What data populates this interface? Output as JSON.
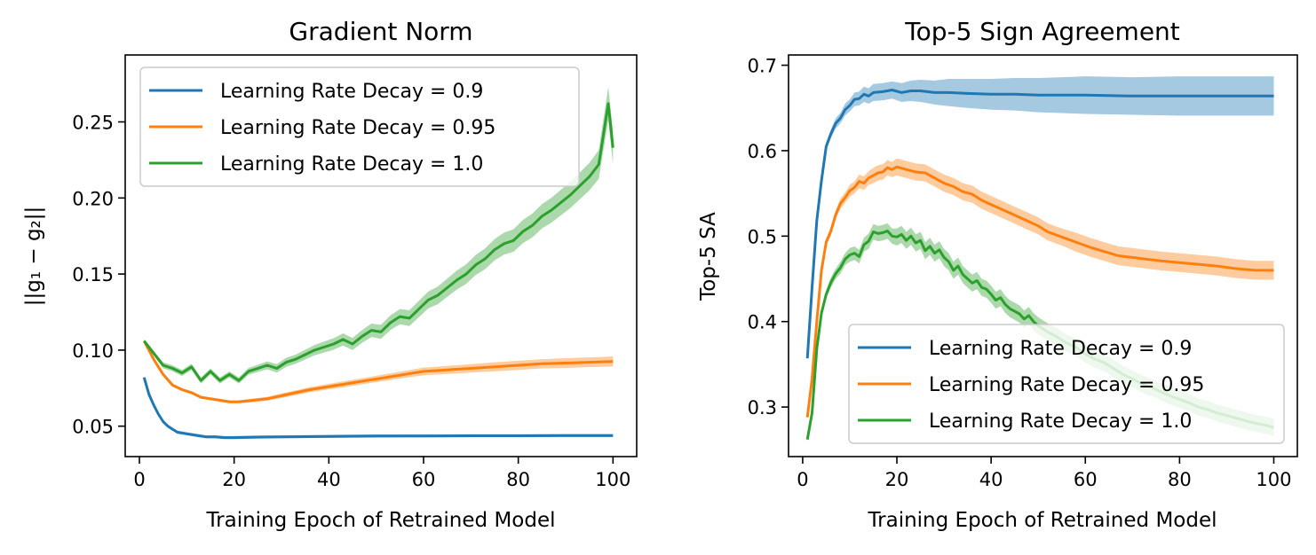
{
  "chart_data": [
    {
      "type": "line",
      "title": "Gradient Norm",
      "xlabel": "Training Epoch of Retrained Model",
      "ylabel": "||g₁ − g₂||",
      "xlim": [
        -3,
        105
      ],
      "ylim": [
        0.03,
        0.294
      ],
      "xticks": [
        "0",
        "20",
        "40",
        "60",
        "80",
        "100"
      ],
      "xtick_values": [
        0,
        20,
        40,
        60,
        80,
        100
      ],
      "yticks": [
        "0.05",
        "0.10",
        "0.15",
        "0.20",
        "0.25"
      ],
      "ytick_values": [
        0.05,
        0.1,
        0.15,
        0.2,
        0.25
      ],
      "legend_position": "top-left",
      "grid": false,
      "series": [
        {
          "name": "Learning Rate Decay = 0.9",
          "color": "#1f77b4",
          "x": [
            1,
            2,
            3,
            4,
            5,
            6,
            7,
            8,
            10,
            12,
            14,
            16,
            18,
            20,
            25,
            30,
            40,
            50,
            60,
            70,
            80,
            90,
            100
          ],
          "y": [
            0.082,
            0.071,
            0.064,
            0.058,
            0.053,
            0.05,
            0.048,
            0.046,
            0.045,
            0.044,
            0.043,
            0.043,
            0.0425,
            0.0425,
            0.0428,
            0.043,
            0.0433,
            0.0435,
            0.0436,
            0.0437,
            0.0437,
            0.0438,
            0.0438
          ],
          "band": [
            0.001,
            0.001,
            0.001,
            0.001,
            0.001,
            0.001,
            0.001,
            0.001,
            0.001,
            0.001,
            0.001,
            0.001,
            0.001,
            0.001,
            0.001,
            0.001,
            0.001,
            0.001,
            0.001,
            0.001,
            0.001,
            0.001,
            0.001
          ]
        },
        {
          "name": "Learning Rate Decay = 0.95",
          "color": "#ff7f0e",
          "x": [
            1,
            3,
            5,
            7,
            9,
            11,
            13,
            15,
            17,
            19,
            21,
            24,
            27,
            30,
            33,
            36,
            40,
            44,
            48,
            52,
            56,
            60,
            65,
            70,
            75,
            80,
            85,
            90,
            95,
            100
          ],
          "y": [
            0.106,
            0.094,
            0.084,
            0.077,
            0.074,
            0.072,
            0.069,
            0.068,
            0.067,
            0.066,
            0.066,
            0.067,
            0.068,
            0.07,
            0.072,
            0.074,
            0.076,
            0.078,
            0.08,
            0.082,
            0.084,
            0.086,
            0.087,
            0.088,
            0.089,
            0.09,
            0.091,
            0.0915,
            0.092,
            0.0925
          ],
          "band": [
            0.001,
            0.001,
            0.001,
            0.001,
            0.001,
            0.001,
            0.001,
            0.001,
            0.001,
            0.001,
            0.001,
            0.0012,
            0.0013,
            0.0015,
            0.0016,
            0.0017,
            0.0018,
            0.002,
            0.002,
            0.0022,
            0.0023,
            0.0025,
            0.0026,
            0.0028,
            0.003,
            0.003,
            0.003,
            0.0032,
            0.0032,
            0.0033
          ]
        },
        {
          "name": "Learning Rate Decay = 1.0",
          "color": "#2ca02c",
          "x": [
            1,
            3,
            5,
            7,
            9,
            11,
            13,
            15,
            17,
            19,
            21,
            23,
            25,
            27,
            29,
            31,
            33,
            35,
            37,
            39,
            41,
            43,
            45,
            47,
            49,
            51,
            53,
            55,
            57,
            59,
            61,
            63,
            65,
            67,
            69,
            71,
            73,
            75,
            77,
            79,
            81,
            83,
            85,
            87,
            89,
            91,
            93,
            95,
            97,
            99,
            100
          ],
          "y": [
            0.106,
            0.098,
            0.09,
            0.088,
            0.085,
            0.089,
            0.08,
            0.086,
            0.08,
            0.084,
            0.08,
            0.086,
            0.088,
            0.09,
            0.088,
            0.092,
            0.094,
            0.097,
            0.1,
            0.102,
            0.104,
            0.107,
            0.104,
            0.109,
            0.113,
            0.112,
            0.118,
            0.122,
            0.121,
            0.127,
            0.133,
            0.136,
            0.141,
            0.146,
            0.15,
            0.156,
            0.16,
            0.166,
            0.17,
            0.172,
            0.178,
            0.182,
            0.188,
            0.192,
            0.197,
            0.202,
            0.208,
            0.214,
            0.222,
            0.262,
            0.233
          ],
          "band": [
            0.001,
            0.0015,
            0.002,
            0.002,
            0.002,
            0.002,
            0.002,
            0.002,
            0.002,
            0.002,
            0.002,
            0.0022,
            0.0024,
            0.0026,
            0.0028,
            0.003,
            0.003,
            0.0032,
            0.0034,
            0.0036,
            0.0038,
            0.004,
            0.004,
            0.0042,
            0.0044,
            0.0046,
            0.0048,
            0.005,
            0.0052,
            0.0054,
            0.0056,
            0.0058,
            0.006,
            0.0062,
            0.0064,
            0.0066,
            0.0068,
            0.007,
            0.0072,
            0.0074,
            0.0076,
            0.0078,
            0.008,
            0.0082,
            0.0084,
            0.0086,
            0.0088,
            0.009,
            0.0095,
            0.011,
            0.011
          ]
        }
      ]
    },
    {
      "type": "line",
      "title": "Top-5 Sign Agreement",
      "xlabel": "Training Epoch of Retrained Model",
      "ylabel": "Top-5 SA",
      "xlim": [
        -3,
        105
      ],
      "ylim": [
        0.242,
        0.712
      ],
      "xticks": [
        "0",
        "20",
        "40",
        "60",
        "80",
        "100"
      ],
      "xtick_values": [
        0,
        20,
        40,
        60,
        80,
        100
      ],
      "yticks": [
        "0.3",
        "0.4",
        "0.5",
        "0.6",
        "0.7"
      ],
      "ytick_values": [
        0.3,
        0.4,
        0.5,
        0.6,
        0.7
      ],
      "legend_position": "bottom-right",
      "grid": false,
      "series": [
        {
          "name": "Learning Rate Decay = 0.9",
          "color": "#1f77b4",
          "x": [
            1,
            2,
            3,
            4,
            5,
            6,
            7,
            8,
            9,
            10,
            11,
            12,
            13,
            14,
            15,
            17,
            19,
            21,
            23,
            25,
            28,
            31,
            35,
            40,
            45,
            50,
            55,
            60,
            70,
            80,
            90,
            100
          ],
          "y": [
            0.357,
            0.44,
            0.518,
            0.565,
            0.605,
            0.62,
            0.632,
            0.638,
            0.648,
            0.653,
            0.66,
            0.661,
            0.666,
            0.664,
            0.668,
            0.669,
            0.671,
            0.668,
            0.67,
            0.67,
            0.668,
            0.668,
            0.667,
            0.666,
            0.666,
            0.665,
            0.665,
            0.665,
            0.664,
            0.664,
            0.664,
            0.664
          ],
          "band": [
            0.003,
            0.004,
            0.004,
            0.004,
            0.005,
            0.005,
            0.006,
            0.006,
            0.007,
            0.007,
            0.008,
            0.008,
            0.009,
            0.009,
            0.01,
            0.01,
            0.01,
            0.011,
            0.012,
            0.013,
            0.014,
            0.016,
            0.017,
            0.018,
            0.019,
            0.02,
            0.021,
            0.022,
            0.022,
            0.023,
            0.023,
            0.023
          ]
        },
        {
          "name": "Learning Rate Decay = 0.95",
          "color": "#ff7f0e",
          "x": [
            1,
            2,
            3,
            4,
            5,
            6,
            7,
            8,
            9,
            10,
            11,
            12,
            13,
            14,
            15,
            16,
            17,
            18,
            19,
            20,
            22,
            24,
            26,
            28,
            30,
            32,
            34,
            36,
            38,
            40,
            42,
            44,
            46,
            48,
            50,
            52,
            55,
            58,
            61,
            64,
            67,
            70,
            73,
            76,
            80,
            84,
            88,
            92,
            96,
            100
          ],
          "y": [
            0.288,
            0.333,
            0.4,
            0.46,
            0.493,
            0.506,
            0.525,
            0.538,
            0.545,
            0.553,
            0.557,
            0.564,
            0.562,
            0.568,
            0.571,
            0.574,
            0.575,
            0.58,
            0.578,
            0.581,
            0.578,
            0.575,
            0.574,
            0.568,
            0.562,
            0.558,
            0.552,
            0.549,
            0.542,
            0.537,
            0.532,
            0.527,
            0.522,
            0.517,
            0.512,
            0.505,
            0.499,
            0.493,
            0.487,
            0.482,
            0.477,
            0.475,
            0.473,
            0.471,
            0.469,
            0.467,
            0.465,
            0.462,
            0.46,
            0.46
          ],
          "band": [
            0.002,
            0.003,
            0.003,
            0.004,
            0.004,
            0.005,
            0.005,
            0.006,
            0.006,
            0.007,
            0.007,
            0.008,
            0.008,
            0.008,
            0.009,
            0.009,
            0.009,
            0.009,
            0.009,
            0.01,
            0.01,
            0.01,
            0.01,
            0.01,
            0.01,
            0.01,
            0.01,
            0.01,
            0.01,
            0.01,
            0.01,
            0.01,
            0.01,
            0.01,
            0.01,
            0.01,
            0.01,
            0.011,
            0.011,
            0.011,
            0.011,
            0.011,
            0.011,
            0.011,
            0.011,
            0.011,
            0.011,
            0.011,
            0.011,
            0.011
          ]
        },
        {
          "name": "Learning Rate Decay = 1.0",
          "color": "#2ca02c",
          "x": [
            1,
            2,
            3,
            4,
            5,
            6,
            7,
            8,
            9,
            10,
            11,
            12,
            13,
            14,
            15,
            16,
            17,
            18,
            19,
            20,
            21,
            22,
            23,
            24,
            25,
            26,
            27,
            28,
            29,
            30,
            31,
            32,
            33,
            34,
            35,
            36,
            37,
            38,
            39,
            40,
            41,
            42,
            43,
            44,
            45,
            46,
            47,
            48,
            49,
            50,
            52,
            54,
            56,
            58,
            60,
            62,
            64,
            66,
            68,
            70,
            72,
            74,
            76,
            78,
            80,
            82,
            84,
            86,
            88,
            90,
            92,
            94,
            96,
            98,
            100
          ],
          "y": [
            0.262,
            0.293,
            0.368,
            0.41,
            0.432,
            0.446,
            0.456,
            0.463,
            0.473,
            0.478,
            0.48,
            0.476,
            0.49,
            0.494,
            0.505,
            0.503,
            0.504,
            0.506,
            0.5,
            0.499,
            0.502,
            0.495,
            0.5,
            0.492,
            0.495,
            0.483,
            0.488,
            0.48,
            0.484,
            0.475,
            0.47,
            0.46,
            0.465,
            0.455,
            0.45,
            0.445,
            0.448,
            0.44,
            0.438,
            0.432,
            0.425,
            0.428,
            0.42,
            0.415,
            0.412,
            0.409,
            0.403,
            0.407,
            0.4,
            0.395,
            0.388,
            0.382,
            0.375,
            0.37,
            0.362,
            0.356,
            0.352,
            0.345,
            0.338,
            0.333,
            0.327,
            0.323,
            0.318,
            0.313,
            0.309,
            0.305,
            0.3,
            0.297,
            0.293,
            0.29,
            0.287,
            0.284,
            0.281,
            0.279,
            0.276
          ],
          "band": [
            0.002,
            0.002,
            0.003,
            0.004,
            0.005,
            0.006,
            0.006,
            0.007,
            0.007,
            0.008,
            0.008,
            0.008,
            0.008,
            0.009,
            0.009,
            0.009,
            0.009,
            0.009,
            0.009,
            0.01,
            0.01,
            0.01,
            0.01,
            0.01,
            0.01,
            0.01,
            0.01,
            0.01,
            0.01,
            0.01,
            0.01,
            0.01,
            0.01,
            0.01,
            0.01,
            0.01,
            0.01,
            0.01,
            0.01,
            0.01,
            0.01,
            0.01,
            0.01,
            0.01,
            0.01,
            0.01,
            0.01,
            0.01,
            0.01,
            0.01,
            0.01,
            0.01,
            0.01,
            0.01,
            0.01,
            0.01,
            0.01,
            0.01,
            0.01,
            0.01,
            0.01,
            0.01,
            0.01,
            0.01,
            0.01,
            0.01,
            0.01,
            0.01,
            0.01,
            0.01,
            0.01,
            0.01,
            0.01,
            0.01,
            0.01
          ]
        }
      ]
    }
  ]
}
